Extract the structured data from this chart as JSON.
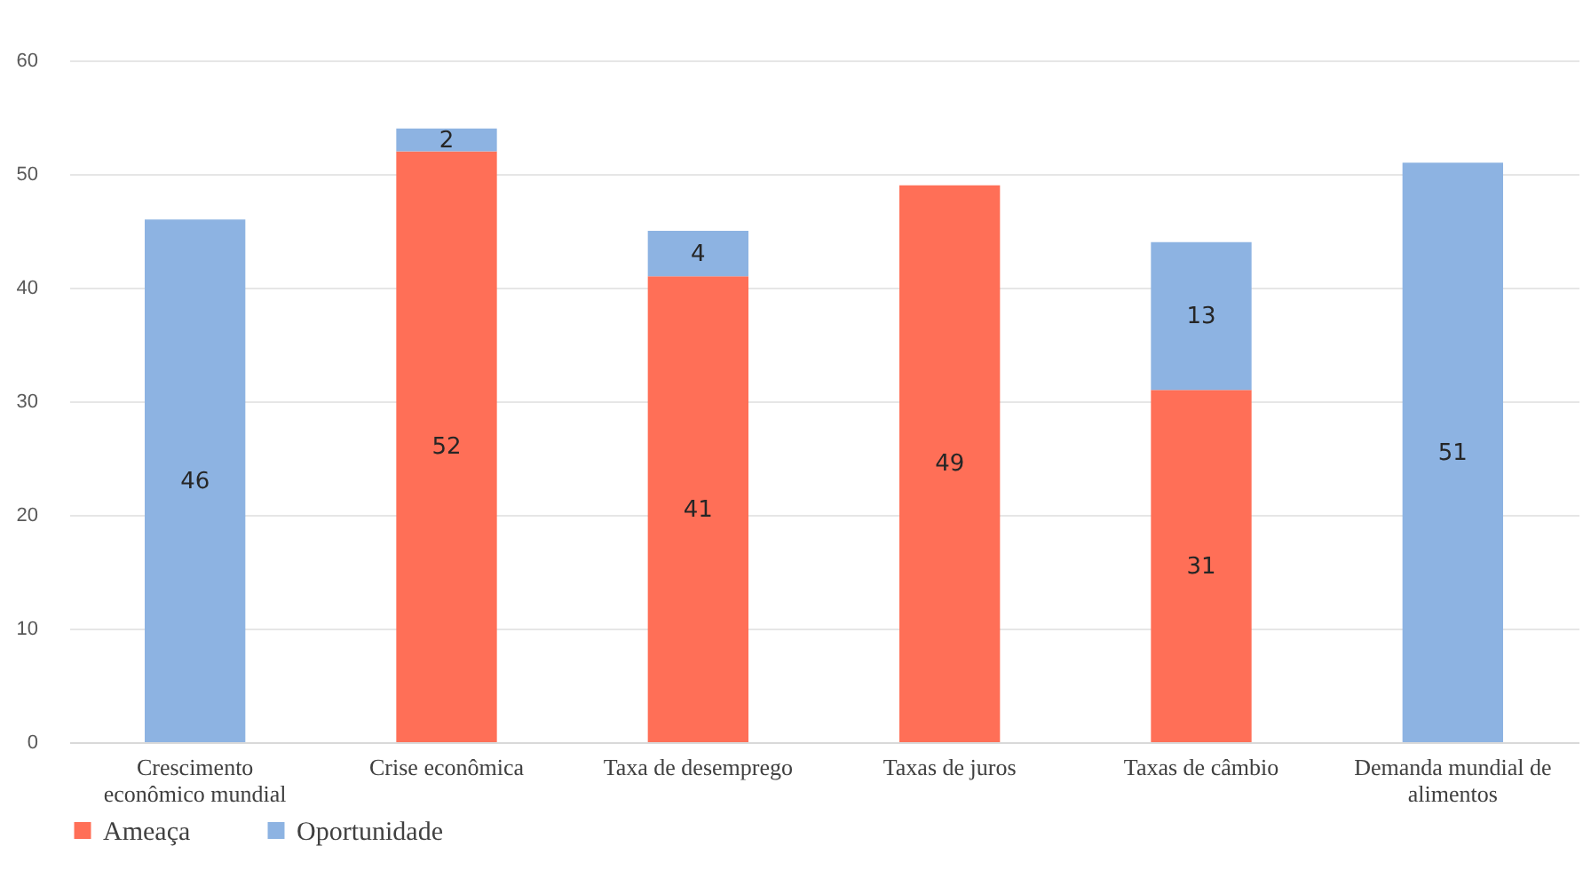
{
  "chart_data": {
    "type": "bar",
    "stacked": true,
    "categories": [
      "Crescimento econômico mundial",
      "Crise econômica",
      "Taxa de desemprego",
      "Taxas de juros",
      "Taxas de câmbio",
      "Demanda mundial de alimentos"
    ],
    "series": [
      {
        "name": "Ameaça",
        "color": "#ff6f57",
        "values": [
          null,
          52,
          41,
          49,
          31,
          null
        ]
      },
      {
        "name": "Oportunidade",
        "color": "#8db3e2",
        "values": [
          46,
          2,
          4,
          null,
          13,
          51
        ]
      }
    ],
    "ylim": [
      0,
      60
    ],
    "yticks": [
      0,
      10,
      20,
      30,
      40,
      50,
      60
    ],
    "grid": "y",
    "legend": "bottom",
    "data_labels": true
  }
}
